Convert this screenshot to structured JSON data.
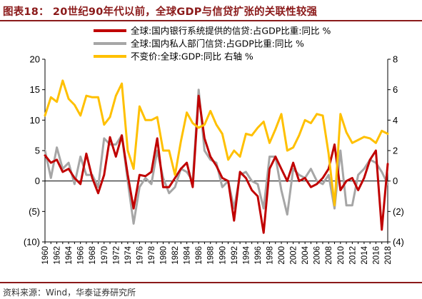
{
  "title": "图表18： 20世纪90年代以前，全球GDP与信贷扩张的关联性较强",
  "source": "资料来源：Wind，华泰证券研究所",
  "chart_data": {
    "type": "line",
    "x": [
      1960,
      1961,
      1962,
      1963,
      1964,
      1965,
      1966,
      1967,
      1968,
      1969,
      1970,
      1971,
      1972,
      1973,
      1974,
      1975,
      1976,
      1977,
      1978,
      1979,
      1980,
      1981,
      1982,
      1983,
      1984,
      1985,
      1986,
      1987,
      1988,
      1989,
      1990,
      1991,
      1992,
      1993,
      1994,
      1995,
      1996,
      1997,
      1998,
      1999,
      2000,
      2001,
      2002,
      2003,
      2004,
      2005,
      2006,
      2007,
      2008,
      2009,
      2010,
      2011,
      2012,
      2013,
      2014,
      2015,
      2016,
      2017,
      2018
    ],
    "xticks": [
      "1960",
      "1962",
      "1964",
      "1966",
      "1968",
      "1970",
      "1972",
      "1974",
      "1976",
      "1978",
      "1980",
      "1982",
      "1984",
      "1986",
      "1988",
      "1990",
      "1992",
      "1994",
      "1996",
      "1998",
      "2000",
      "2002",
      "2004",
      "2006",
      "2008",
      "2010",
      "2012",
      "2014",
      "2016",
      "2018"
    ],
    "ylim_left": [
      -10,
      20
    ],
    "yticks_left": [
      "20",
      "15",
      "10",
      "5",
      "0",
      "(5)",
      "(10)"
    ],
    "ylim_right": [
      -4,
      8
    ],
    "yticks_right": [
      "8",
      "6",
      "4",
      "2",
      "0",
      "(2)",
      "(4)"
    ],
    "grid": false,
    "legend_position": "top",
    "series": [
      {
        "name": "全球:国内银行系统提供的信贷:占GDP比重:同比 %",
        "axis": "left",
        "color": "#c00000",
        "values": [
          4.2,
          3.0,
          3.5,
          1.5,
          2.0,
          0.5,
          -0.5,
          4.5,
          0.5,
          -2.0,
          1.0,
          7.2,
          4.0,
          7.5,
          1.0,
          -4.5,
          1.0,
          0.8,
          1.5,
          7.0,
          -1.0,
          -1.0,
          0.5,
          2.0,
          3.0,
          -1.0,
          14.0,
          7.0,
          4.0,
          2.5,
          0.5,
          0.0,
          -6.5,
          1.5,
          0.5,
          -1.5,
          -2.5,
          -8.5,
          2.0,
          4.0,
          2.0,
          0.0,
          3.0,
          0.0,
          0.5,
          -1.0,
          -0.5,
          0.5,
          2.0,
          6.0,
          -1.5,
          0.0,
          0.5,
          -1.5,
          0.5,
          3.5,
          5.0,
          -8.0,
          2.8
        ]
      },
      {
        "name": "全球:国内私人部门信贷:占GDP比重:同比 %",
        "axis": "left",
        "color": "#a6a6a6",
        "values": [
          5.0,
          0.5,
          5.5,
          2.0,
          3.0,
          -0.5,
          4.0,
          1.0,
          1.0,
          -1.0,
          7.0,
          6.0,
          6.0,
          7.5,
          0.0,
          -7.0,
          -1.0,
          0.5,
          -0.5,
          5.0,
          0.5,
          -2.0,
          -1.0,
          2.0,
          1.5,
          0.0,
          15.0,
          5.0,
          3.5,
          3.0,
          -1.0,
          0.0,
          -4.5,
          1.0,
          1.5,
          0.0,
          -0.5,
          -4.5,
          4.0,
          4.0,
          -1.5,
          -5.5,
          2.0,
          1.0,
          0.5,
          2.0,
          0.0,
          -0.5,
          1.0,
          -4.5,
          5.0,
          -4.0,
          -4.0,
          1.0,
          2.0,
          3.5,
          3.0,
          1.5,
          -0.5
        ]
      },
      {
        "name": "不变价:全球:GDP:同比 右轴 %",
        "axis": "right",
        "color": "#ffc000",
        "values": [
          4.3,
          5.5,
          5.2,
          6.6,
          5.4,
          5.0,
          4.3,
          5.6,
          5.5,
          5.5,
          3.7,
          4.2,
          5.6,
          6.4,
          2.0,
          0.8,
          4.9,
          4.0,
          4.0,
          4.2,
          2.0,
          2.0,
          0.4,
          2.6,
          4.5,
          3.8,
          3.5,
          3.7,
          4.6,
          3.7,
          3.1,
          1.4,
          2.0,
          1.6,
          3.1,
          3.0,
          3.5,
          3.9,
          2.5,
          3.4,
          4.4,
          2.0,
          2.2,
          3.0,
          4.0,
          3.8,
          4.4,
          4.3,
          1.8,
          -1.6,
          4.4,
          3.2,
          2.5,
          2.7,
          2.9,
          2.8,
          2.5,
          3.3,
          3.1
        ]
      }
    ]
  }
}
